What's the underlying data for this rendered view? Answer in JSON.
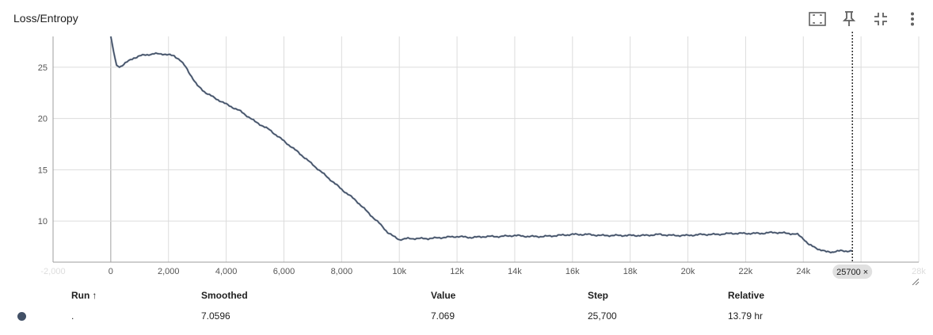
{
  "card": {
    "title": "Loss/Entropy"
  },
  "toolbar": [
    {
      "name": "fit-domain-button",
      "icon": "fit-domain-icon"
    },
    {
      "name": "pin-button",
      "icon": "pin-icon"
    },
    {
      "name": "collapse-button",
      "icon": "collapse-icon"
    },
    {
      "name": "more-options-button",
      "icon": "more-vert-icon"
    }
  ],
  "chart_data": {
    "type": "line",
    "title": "Loss/Entropy",
    "xlabel": "",
    "ylabel": "",
    "xlim": [
      -2000,
      28000
    ],
    "ylim": [
      6,
      28
    ],
    "x_ticks": [
      -2000,
      0,
      2000,
      4000,
      6000,
      8000,
      10000,
      12000,
      14000,
      16000,
      18000,
      20000,
      22000,
      24000,
      26000,
      28000
    ],
    "x_tick_labels": [
      "-2,000",
      "0",
      "2,000",
      "4,000",
      "6,000",
      "8,000",
      "10k",
      "12k",
      "14k",
      "16k",
      "18k",
      "20k",
      "22k",
      "24k",
      "26k",
      "28k"
    ],
    "y_ticks": [
      10,
      15,
      20,
      25
    ],
    "y_tick_labels": [
      "10",
      "15",
      "20",
      "25"
    ],
    "grid": true,
    "line_color": "#425066",
    "series": [
      {
        "name": "",
        "x": [
          0,
          100,
          200,
          300,
          500,
          800,
          1000,
          1200,
          1500,
          1800,
          2000,
          2200,
          2400,
          2600,
          2800,
          3000,
          3300,
          3600,
          4000,
          4500,
          5000,
          5500,
          6000,
          6500,
          7000,
          7500,
          8000,
          8500,
          9000,
          9300,
          9600,
          9800,
          10000,
          10300,
          10600,
          11000,
          11500,
          12000,
          12500,
          13000,
          13500,
          14000,
          14500,
          15000,
          15500,
          16000,
          16500,
          17000,
          17500,
          18000,
          18500,
          19000,
          19500,
          20000,
          20500,
          21000,
          21500,
          22000,
          22500,
          23000,
          23500,
          23800,
          24000,
          24200,
          24500,
          24800,
          25000,
          25300,
          25700
        ],
        "y": [
          28.0,
          26.5,
          25.2,
          25.0,
          25.4,
          25.9,
          26.1,
          26.2,
          26.3,
          26.3,
          26.2,
          26.1,
          25.7,
          25.0,
          24.1,
          23.2,
          22.5,
          22.0,
          21.4,
          20.7,
          19.7,
          18.9,
          17.8,
          16.7,
          15.5,
          14.3,
          13.1,
          12.0,
          10.6,
          9.8,
          8.9,
          8.5,
          8.2,
          8.3,
          8.3,
          8.3,
          8.4,
          8.5,
          8.4,
          8.5,
          8.5,
          8.6,
          8.5,
          8.5,
          8.6,
          8.7,
          8.7,
          8.6,
          8.6,
          8.6,
          8.6,
          8.7,
          8.6,
          8.6,
          8.7,
          8.7,
          8.8,
          8.8,
          8.8,
          8.9,
          8.8,
          8.7,
          8.3,
          7.7,
          7.3,
          7.0,
          7.0,
          7.1,
          7.07
        ]
      }
    ],
    "cursor": {
      "step": 25700,
      "label": "25700 ×"
    }
  },
  "table": {
    "headers": {
      "run": "Run",
      "sort_arrow": "↑",
      "smoothed": "Smoothed",
      "value": "Value",
      "step": "Step",
      "relative": "Relative"
    },
    "rows": [
      {
        "run_color": "#425066",
        "run": ".",
        "smoothed": "7.0596",
        "value": "7.069",
        "step": "25,700",
        "relative": "13.79 hr"
      }
    ]
  }
}
